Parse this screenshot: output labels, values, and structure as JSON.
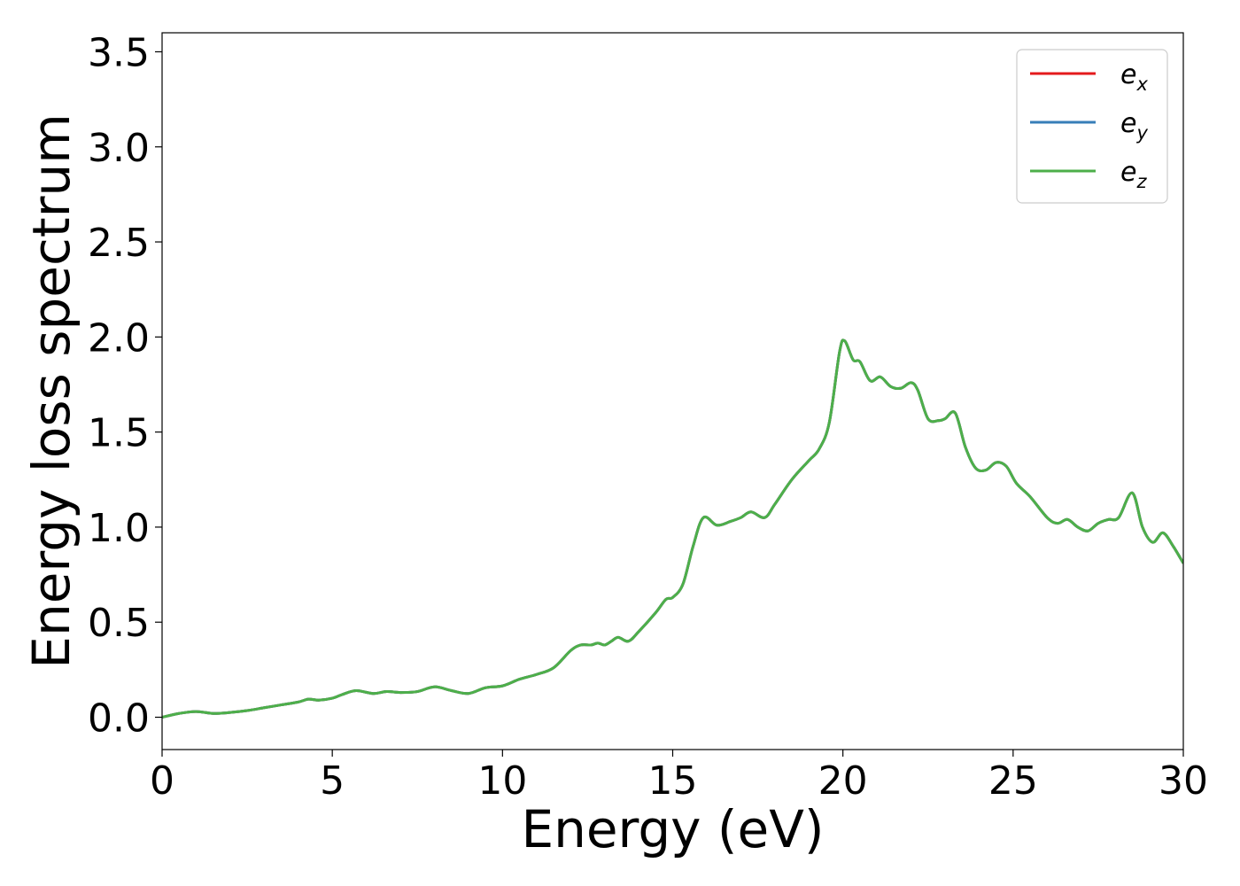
{
  "chart_data": {
    "type": "line",
    "xlabel": "Energy (eV)",
    "ylabel": "Energy loss spectrum",
    "xlim": [
      0,
      30
    ],
    "ylim": [
      -0.17,
      3.6
    ],
    "x_ticks": [
      0,
      5,
      10,
      15,
      20,
      25,
      30
    ],
    "x_tick_labels": [
      "0",
      "5",
      "10",
      "15",
      "20",
      "25",
      "30"
    ],
    "y_ticks": [
      0.0,
      0.5,
      1.0,
      1.5,
      2.0,
      2.5,
      3.0,
      3.5
    ],
    "y_tick_labels": [
      "0.0",
      "0.5",
      "1.0",
      "1.5",
      "2.0",
      "2.5",
      "3.0",
      "3.5"
    ],
    "grid": false,
    "legend_position": "top-right",
    "x": [
      0,
      0.5,
      1.0,
      1.5,
      2.0,
      2.5,
      3.0,
      3.5,
      4.0,
      4.3,
      4.6,
      5.0,
      5.3,
      5.7,
      6.2,
      6.6,
      7.0,
      7.5,
      8.0,
      8.5,
      9.0,
      9.5,
      10.0,
      10.5,
      11.0,
      11.5,
      12.0,
      12.3,
      12.6,
      12.8,
      13.0,
      13.2,
      13.4,
      13.7,
      14.0,
      14.5,
      14.8,
      15.0,
      15.3,
      15.6,
      15.9,
      16.3,
      16.7,
      17.0,
      17.3,
      17.7,
      18.0,
      18.5,
      19.0,
      19.3,
      19.6,
      19.9,
      20.05,
      20.3,
      20.5,
      20.8,
      21.1,
      21.4,
      21.7,
      22.0,
      22.2,
      22.5,
      22.8,
      23.0,
      23.3,
      23.6,
      23.9,
      24.2,
      24.5,
      24.8,
      25.1,
      25.5,
      26.0,
      26.3,
      26.6,
      26.9,
      27.2,
      27.5,
      27.8,
      28.1,
      28.5,
      28.8,
      29.1,
      29.4,
      29.7,
      30.0
    ],
    "series": [
      {
        "name": "e_x",
        "color": "#e41a1c",
        "values": [
          0.0,
          0.02,
          0.03,
          0.02,
          0.025,
          0.035,
          0.05,
          0.065,
          0.08,
          0.095,
          0.09,
          0.1,
          0.12,
          0.14,
          0.125,
          0.135,
          0.13,
          0.135,
          0.16,
          0.14,
          0.125,
          0.155,
          0.165,
          0.2,
          0.225,
          0.26,
          0.35,
          0.38,
          0.38,
          0.39,
          0.38,
          0.4,
          0.42,
          0.4,
          0.45,
          0.55,
          0.62,
          0.63,
          0.7,
          0.9,
          1.05,
          1.01,
          1.03,
          1.05,
          1.08,
          1.05,
          1.12,
          1.25,
          1.35,
          1.41,
          1.55,
          1.92,
          1.98,
          1.88,
          1.87,
          1.77,
          1.79,
          1.74,
          1.73,
          1.76,
          1.72,
          1.57,
          1.56,
          1.57,
          1.6,
          1.42,
          1.31,
          1.3,
          1.34,
          1.32,
          1.23,
          1.16,
          1.05,
          1.02,
          1.04,
          1.0,
          0.98,
          1.02,
          1.04,
          1.05,
          1.18,
          1.0,
          0.92,
          0.97,
          0.9,
          0.81
        ]
      },
      {
        "name": "e_y",
        "color": "#377eb8",
        "values": [
          0.0,
          0.02,
          0.03,
          0.02,
          0.025,
          0.035,
          0.05,
          0.065,
          0.08,
          0.095,
          0.09,
          0.1,
          0.12,
          0.14,
          0.125,
          0.135,
          0.13,
          0.135,
          0.16,
          0.14,
          0.125,
          0.155,
          0.165,
          0.2,
          0.225,
          0.26,
          0.35,
          0.38,
          0.38,
          0.39,
          0.38,
          0.4,
          0.42,
          0.4,
          0.45,
          0.55,
          0.62,
          0.63,
          0.7,
          0.9,
          1.05,
          1.01,
          1.03,
          1.05,
          1.08,
          1.05,
          1.12,
          1.25,
          1.35,
          1.41,
          1.55,
          1.92,
          1.98,
          1.88,
          1.87,
          1.77,
          1.79,
          1.74,
          1.73,
          1.76,
          1.72,
          1.57,
          1.56,
          1.57,
          1.6,
          1.42,
          1.31,
          1.3,
          1.34,
          1.32,
          1.23,
          1.16,
          1.05,
          1.02,
          1.04,
          1.0,
          0.98,
          1.02,
          1.04,
          1.05,
          1.18,
          1.0,
          0.92,
          0.97,
          0.9,
          0.81
        ]
      },
      {
        "name": "e_z",
        "color": "#4daf4a",
        "values": [
          0.0,
          0.02,
          0.03,
          0.02,
          0.025,
          0.035,
          0.05,
          0.065,
          0.08,
          0.095,
          0.09,
          0.1,
          0.12,
          0.14,
          0.125,
          0.135,
          0.13,
          0.135,
          0.16,
          0.14,
          0.125,
          0.155,
          0.165,
          0.2,
          0.225,
          0.26,
          0.35,
          0.38,
          0.38,
          0.39,
          0.38,
          0.4,
          0.42,
          0.4,
          0.45,
          0.55,
          0.62,
          0.63,
          0.7,
          0.9,
          1.05,
          1.01,
          1.03,
          1.05,
          1.08,
          1.05,
          1.12,
          1.25,
          1.35,
          1.41,
          1.55,
          1.92,
          1.98,
          1.88,
          1.87,
          1.77,
          1.79,
          1.74,
          1.73,
          1.76,
          1.72,
          1.57,
          1.56,
          1.57,
          1.6,
          1.42,
          1.31,
          1.3,
          1.34,
          1.32,
          1.23,
          1.16,
          1.05,
          1.02,
          1.04,
          1.0,
          0.98,
          1.02,
          1.04,
          1.05,
          1.18,
          1.0,
          0.92,
          0.97,
          0.9,
          0.81
        ]
      }
    ],
    "legend": [
      {
        "base": "e",
        "sub": "x",
        "color": "#e41a1c"
      },
      {
        "base": "e",
        "sub": "y",
        "color": "#377eb8"
      },
      {
        "base": "e",
        "sub": "z",
        "color": "#4daf4a"
      }
    ]
  }
}
